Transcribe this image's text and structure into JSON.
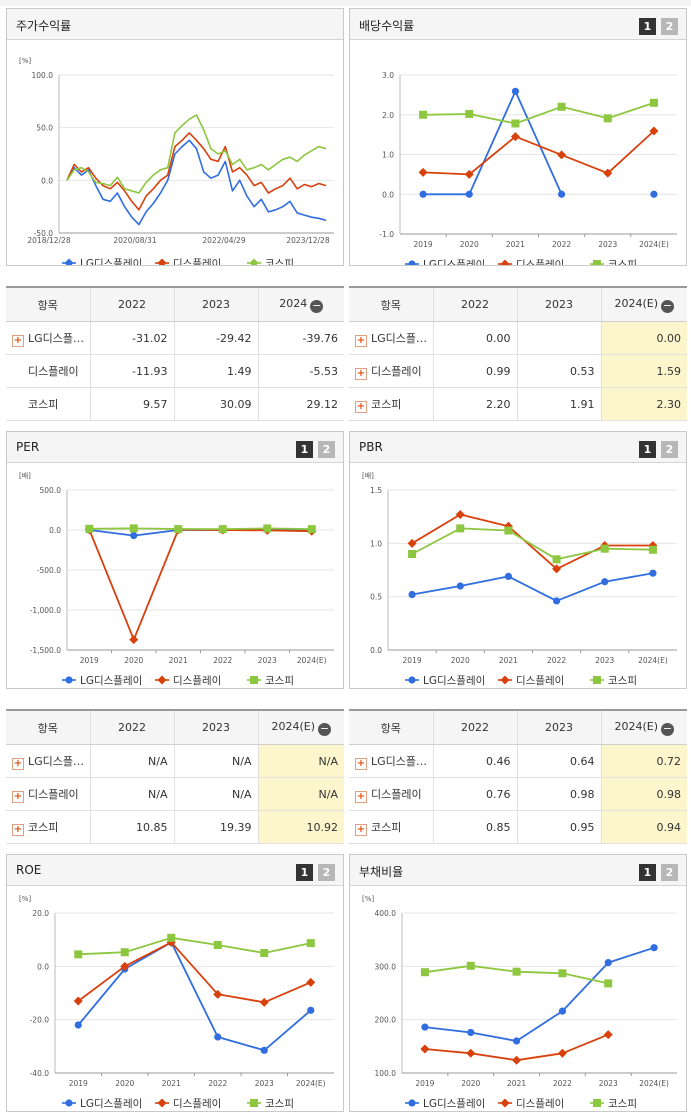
{
  "legend_labels": [
    "LG디스플레이",
    "디스플레이",
    "코스피"
  ],
  "colors": {
    "lg": "#2f6de1",
    "disp": "#d8400c",
    "kospi": "#8dc63f"
  },
  "panels": {
    "stock": {
      "title": "주가수익률"
    },
    "dividend": {
      "title": "배당수익률",
      "page1": "1",
      "page2": "2"
    },
    "per": {
      "title": "PER",
      "page1": "1",
      "page2": "2"
    },
    "pbr": {
      "title": "PBR",
      "page1": "1",
      "page2": "2"
    },
    "roe": {
      "title": "ROE",
      "page1": "1",
      "page2": "2"
    },
    "debt": {
      "title": "부채비율",
      "page1": "1",
      "page2": "2"
    }
  },
  "tables": {
    "stock": {
      "headers": [
        "항목",
        "2022",
        "2023",
        "2024"
      ],
      "rows": [
        {
          "name": "LG디스플…",
          "values": [
            "-31.02",
            "-29.42",
            "-39.76"
          ]
        },
        {
          "name": "디스플레이",
          "values": [
            "-11.93",
            "1.49",
            "-5.53"
          ]
        },
        {
          "name": "코스피",
          "values": [
            "9.57",
            "30.09",
            "29.12"
          ]
        }
      ]
    },
    "dividend": {
      "headers": [
        "항목",
        "2022",
        "2023",
        "2024(E)"
      ],
      "rows": [
        {
          "name": "LG디스플…",
          "values": [
            "0.00",
            "",
            "0.00"
          ]
        },
        {
          "name": "디스플레이",
          "values": [
            "0.99",
            "0.53",
            "1.59"
          ]
        },
        {
          "name": "코스피",
          "values": [
            "2.20",
            "1.91",
            "2.30"
          ]
        }
      ]
    },
    "per": {
      "headers": [
        "항목",
        "2022",
        "2023",
        "2024(E)"
      ],
      "rows": [
        {
          "name": "LG디스플…",
          "values": [
            "N/A",
            "N/A",
            "N/A"
          ]
        },
        {
          "name": "디스플레이",
          "values": [
            "N/A",
            "N/A",
            "N/A"
          ]
        },
        {
          "name": "코스피",
          "values": [
            "10.85",
            "19.39",
            "10.92"
          ]
        }
      ]
    },
    "pbr": {
      "headers": [
        "항목",
        "2022",
        "2023",
        "2024(E)"
      ],
      "rows": [
        {
          "name": "LG디스플…",
          "values": [
            "0.46",
            "0.64",
            "0.72"
          ]
        },
        {
          "name": "디스플레이",
          "values": [
            "0.76",
            "0.98",
            "0.98"
          ]
        },
        {
          "name": "코스피",
          "values": [
            "0.85",
            "0.95",
            "0.94"
          ]
        }
      ]
    }
  },
  "chart_data": [
    {
      "id": "stock",
      "type": "line",
      "title": "주가수익률",
      "ylabel": "[%]",
      "x_ticks": [
        "2018/12/28",
        "2020/08/31",
        "2022/04/29",
        "2023/12/28"
      ],
      "ylim": [
        -50,
        100
      ],
      "y_ticks": [
        -50,
        0,
        50,
        100
      ],
      "y_tick_labels": [
        "-50.0",
        "0.0",
        "50.0",
        "100.0"
      ],
      "markers": false,
      "series": [
        {
          "name": "LG디스플레이",
          "color": "lg",
          "values": [
            0,
            12,
            5,
            10,
            -5,
            -18,
            -20,
            -12,
            -25,
            -35,
            -42,
            -30,
            -22,
            -12,
            0,
            25,
            32,
            38,
            30,
            8,
            2,
            5,
            18,
            -10,
            0,
            -15,
            -25,
            -18,
            -30,
            -28,
            -25,
            -20,
            -31,
            -33,
            -35,
            -36,
            -38
          ]
        },
        {
          "name": "디스플레이",
          "color": "disp",
          "values": [
            0,
            15,
            8,
            12,
            2,
            -5,
            -8,
            -2,
            -10,
            -20,
            -28,
            -15,
            -8,
            0,
            5,
            32,
            38,
            45,
            38,
            30,
            20,
            18,
            32,
            8,
            12,
            5,
            -5,
            -2,
            -12,
            -8,
            -5,
            2,
            -8,
            -4,
            -6,
            -3,
            -5
          ]
        },
        {
          "name": "코스피",
          "color": "kospi",
          "values": [
            0,
            10,
            12,
            8,
            -2,
            -3,
            -5,
            3,
            -8,
            -10,
            -12,
            -2,
            5,
            10,
            12,
            45,
            52,
            58,
            62,
            48,
            30,
            25,
            28,
            15,
            20,
            10,
            12,
            15,
            10,
            15,
            20,
            22,
            18,
            24,
            28,
            32,
            30
          ]
        }
      ]
    },
    {
      "id": "dividend",
      "type": "line",
      "title": "배당수익률",
      "categories": [
        "2019",
        "2020",
        "2021",
        "2022",
        "2023",
        "2024(E)"
      ],
      "ylim": [
        -1,
        3
      ],
      "y_ticks": [
        -1,
        0,
        1,
        2,
        3
      ],
      "y_tick_labels": [
        "-1.0",
        "0.0",
        "1.0",
        "2.0",
        "3.0"
      ],
      "markers": true,
      "series": [
        {
          "name": "LG디스플레이",
          "color": "lg",
          "marker": "circle",
          "values": [
            0.0,
            0.0,
            2.59,
            0.0,
            null,
            0.0
          ]
        },
        {
          "name": "디스플레이",
          "color": "disp",
          "marker": "diamond",
          "values": [
            0.55,
            0.5,
            1.45,
            0.99,
            0.53,
            1.59
          ]
        },
        {
          "name": "코스피",
          "color": "kospi",
          "marker": "square",
          "values": [
            2.0,
            2.02,
            1.78,
            2.2,
            1.91,
            2.3
          ]
        }
      ]
    },
    {
      "id": "per",
      "type": "line",
      "title": "PER",
      "ylabel": "[배]",
      "categories": [
        "2019",
        "2020",
        "2021",
        "2022",
        "2023",
        "2024(E)"
      ],
      "ylim": [
        -1500,
        500
      ],
      "y_ticks": [
        -1500,
        -1000,
        -500,
        0,
        500
      ],
      "y_tick_labels": [
        "-1,500.0",
        "-1,000.0",
        "-500.0",
        "0.0",
        "500.0"
      ],
      "markers": true,
      "series": [
        {
          "name": "LG디스플레이",
          "color": "lg",
          "marker": "circle",
          "values": [
            0,
            -70,
            0,
            0,
            0,
            0
          ]
        },
        {
          "name": "디스플레이",
          "color": "disp",
          "marker": "diamond",
          "values": [
            5,
            -1370,
            5,
            0,
            -5,
            -15
          ]
        },
        {
          "name": "코스피",
          "color": "kospi",
          "marker": "square",
          "values": [
            15,
            20,
            12,
            10.85,
            19.39,
            10.92
          ]
        }
      ]
    },
    {
      "id": "pbr",
      "type": "line",
      "title": "PBR",
      "ylabel": "[배]",
      "categories": [
        "2019",
        "2020",
        "2021",
        "2022",
        "2023",
        "2024(E)"
      ],
      "ylim": [
        0,
        1.5
      ],
      "y_ticks": [
        0,
        0.5,
        1.0,
        1.5
      ],
      "y_tick_labels": [
        "0.0",
        "0.5",
        "1.0",
        "1.5"
      ],
      "markers": true,
      "series": [
        {
          "name": "LG디스플레이",
          "color": "lg",
          "marker": "circle",
          "values": [
            0.52,
            0.6,
            0.69,
            0.46,
            0.64,
            0.72
          ]
        },
        {
          "name": "디스플레이",
          "color": "disp",
          "marker": "diamond",
          "values": [
            1.0,
            1.27,
            1.16,
            0.76,
            0.98,
            0.98
          ]
        },
        {
          "name": "코스피",
          "color": "kospi",
          "marker": "square",
          "values": [
            0.9,
            1.14,
            1.12,
            0.85,
            0.95,
            0.94
          ]
        }
      ]
    },
    {
      "id": "roe",
      "type": "line",
      "title": "ROE",
      "ylabel": "[%]",
      "categories": [
        "2019",
        "2020",
        "2021",
        "2022",
        "2023",
        "2024(E)"
      ],
      "ylim": [
        -40,
        20
      ],
      "y_ticks": [
        -40,
        -20,
        0,
        20
      ],
      "y_tick_labels": [
        "-40.0",
        "-20.0",
        "0.0",
        "20.0"
      ],
      "markers": true,
      "series": [
        {
          "name": "LG디스플레이",
          "color": "lg",
          "marker": "circle",
          "values": [
            -22,
            -1,
            9,
            -26.5,
            -31.5,
            -16.5
          ]
        },
        {
          "name": "디스플레이",
          "color": "disp",
          "marker": "diamond",
          "values": [
            -13,
            0,
            9,
            -10.5,
            -13.5,
            -6
          ]
        },
        {
          "name": "코스피",
          "color": "kospi",
          "marker": "square",
          "values": [
            4.5,
            5.3,
            10.7,
            8.0,
            5.0,
            8.7
          ]
        }
      ]
    },
    {
      "id": "debt",
      "type": "line",
      "title": "부채비율",
      "ylabel": "[%]",
      "categories": [
        "2019",
        "2020",
        "2021",
        "2022",
        "2023",
        "2024(E)"
      ],
      "ylim": [
        100,
        400
      ],
      "y_ticks": [
        100,
        200,
        300,
        400
      ],
      "y_tick_labels": [
        "100.0",
        "200.0",
        "300.0",
        "400.0"
      ],
      "markers": true,
      "series": [
        {
          "name": "LG디스플레이",
          "color": "lg",
          "marker": "circle",
          "values": [
            186,
            176,
            160,
            216,
            307,
            335
          ]
        },
        {
          "name": "디스플레이",
          "color": "disp",
          "marker": "diamond",
          "values": [
            145,
            137,
            124,
            137,
            172,
            null
          ]
        },
        {
          "name": "코스피",
          "color": "kospi",
          "marker": "square",
          "values": [
            289,
            301,
            290,
            287,
            268,
            null
          ]
        }
      ]
    }
  ]
}
